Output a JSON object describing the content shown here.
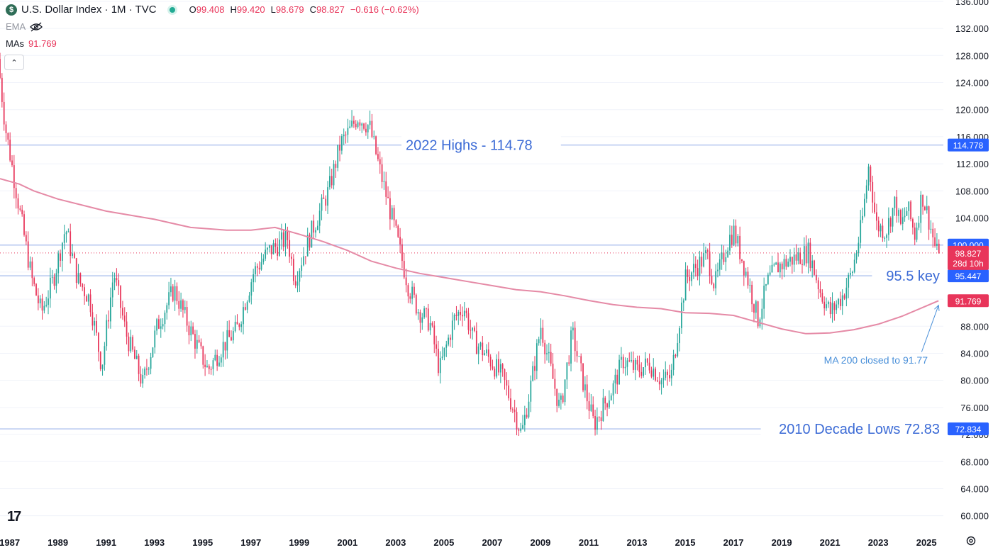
{
  "header": {
    "symbol_icon": "$",
    "title": "U.S. Dollar Index · 1M · TVC",
    "ohlc": {
      "o_label": "O",
      "o_value": "99.408",
      "h_label": "H",
      "h_value": "99.420",
      "l_label": "L",
      "l_value": "98.679",
      "c_label": "C",
      "c_value": "98.827",
      "change": "−0.616 (−0.62%)"
    },
    "ema_label": "EMA",
    "mas_label": "MAs",
    "mas_value": "91.769",
    "logo_text": "17"
  },
  "colors": {
    "up": "#26a69a",
    "down": "#e8355a",
    "ma": "#e58aa6",
    "hline": "#b4c6ef",
    "annotation": "#3c6bd6",
    "axis_tag_blue": "#2962ff",
    "axis_tag_red": "#e8355a"
  },
  "chart_data": {
    "type": "candlestick",
    "title": "U.S. Dollar Index · 1M · TVC",
    "y_axis": {
      "range": [
        58.5,
        136.2
      ],
      "ticks": [
        "60.000",
        "64.000",
        "68.000",
        "72.000",
        "76.000",
        "80.000",
        "84.000",
        "88.000",
        "92.000",
        "96.000",
        "100.000",
        "104.000",
        "108.000",
        "112.000",
        "116.000",
        "120.000",
        "124.000",
        "128.000",
        "132.000",
        "136.000"
      ],
      "tick_values": [
        60,
        64,
        68,
        72,
        76,
        80,
        84,
        88,
        92,
        96,
        100,
        104,
        108,
        112,
        116,
        120,
        124,
        128,
        132,
        136
      ]
    },
    "x_axis": {
      "range": [
        1986.6,
        2025.7
      ],
      "ticks": [
        "1987",
        "1989",
        "1991",
        "1993",
        "1995",
        "1997",
        "1999",
        "2001",
        "2003",
        "2005",
        "2007",
        "2009",
        "2011",
        "2013",
        "2015",
        "2017",
        "2019",
        "2021",
        "2023",
        "2025"
      ],
      "tick_values": [
        1987,
        1989,
        1991,
        1993,
        1995,
        1997,
        1999,
        2001,
        2003,
        2005,
        2007,
        2009,
        2011,
        2013,
        2015,
        2017,
        2019,
        2021,
        2023,
        2025
      ]
    },
    "price_anchors": [
      [
        1986.6,
        127.5
      ],
      [
        1986.9,
        117.5
      ],
      [
        1987.5,
        105.0
      ],
      [
        1988.0,
        95.0
      ],
      [
        1988.4,
        90.0
      ],
      [
        1988.9,
        95.0
      ],
      [
        1989.4,
        102.5
      ],
      [
        1989.9,
        95.0
      ],
      [
        1990.4,
        92.0
      ],
      [
        1990.9,
        82.0
      ],
      [
        1991.4,
        96.0
      ],
      [
        1991.9,
        87.0
      ],
      [
        1992.6,
        79.5
      ],
      [
        1993.2,
        88.0
      ],
      [
        1993.9,
        93.5
      ],
      [
        1994.5,
        88.0
      ],
      [
        1995.3,
        81.5
      ],
      [
        1995.9,
        85.0
      ],
      [
        1996.5,
        87.5
      ],
      [
        1997.2,
        96.0
      ],
      [
        1997.8,
        99.0
      ],
      [
        1998.6,
        101.0
      ],
      [
        1998.9,
        95.0
      ],
      [
        1999.6,
        102.0
      ],
      [
        2000.3,
        108.0
      ],
      [
        2000.8,
        115.0
      ],
      [
        2001.2,
        117.0
      ],
      [
        2001.5,
        119.0
      ],
      [
        2002.0,
        117.5
      ],
      [
        2002.5,
        110.0
      ],
      [
        2003.0,
        103.0
      ],
      [
        2003.6,
        94.0
      ],
      [
        2004.0,
        90.5
      ],
      [
        2004.5,
        88.5
      ],
      [
        2004.9,
        81.5
      ],
      [
        2005.5,
        89.0
      ],
      [
        2005.9,
        91.0
      ],
      [
        2006.3,
        86.0
      ],
      [
        2006.9,
        83.5
      ],
      [
        2007.5,
        80.5
      ],
      [
        2008.0,
        75.5
      ],
      [
        2008.3,
        72.0
      ],
      [
        2008.7,
        79.5
      ],
      [
        2009.1,
        88.0
      ],
      [
        2009.9,
        75.5
      ],
      [
        2010.4,
        87.0
      ],
      [
        2010.9,
        79.0
      ],
      [
        2011.3,
        73.5
      ],
      [
        2012.1,
        79.0
      ],
      [
        2012.5,
        83.0
      ],
      [
        2013.1,
        81.5
      ],
      [
        2013.6,
        82.5
      ],
      [
        2014.1,
        80.0
      ],
      [
        2014.5,
        80.5
      ],
      [
        2015.1,
        95.0
      ],
      [
        2015.6,
        97.0
      ],
      [
        2016.0,
        98.5
      ],
      [
        2016.3,
        94.0
      ],
      [
        2016.9,
        101.0
      ],
      [
        2017.1,
        102.0
      ],
      [
        2017.6,
        96.0
      ],
      [
        2018.1,
        89.0
      ],
      [
        2018.5,
        94.5
      ],
      [
        2018.9,
        96.8
      ],
      [
        2019.6,
        98.0
      ],
      [
        2020.2,
        99.0
      ],
      [
        2020.7,
        93.0
      ],
      [
        2021.1,
        90.0
      ],
      [
        2021.6,
        92.5
      ],
      [
        2022.0,
        96.0
      ],
      [
        2022.4,
        103.0
      ],
      [
        2022.7,
        112.0
      ],
      [
        2023.0,
        103.0
      ],
      [
        2023.4,
        102.0
      ],
      [
        2023.8,
        106.5
      ],
      [
        2024.0,
        102.5
      ],
      [
        2024.3,
        105.5
      ],
      [
        2024.6,
        101.5
      ],
      [
        2024.9,
        107.5
      ],
      [
        2025.2,
        103.5
      ],
      [
        2025.5,
        98.8
      ]
    ],
    "ma_200": [
      [
        1986.6,
        109.8
      ],
      [
        1987.4,
        109.0
      ],
      [
        1988.0,
        108.0
      ],
      [
        1989.0,
        106.8
      ],
      [
        1991.0,
        105.0
      ],
      [
        1993.0,
        103.8
      ],
      [
        1994.5,
        102.6
      ],
      [
        1996.0,
        102.2
      ],
      [
        1997.0,
        102.2
      ],
      [
        1998.0,
        102.6
      ],
      [
        1999.0,
        101.6
      ],
      [
        2000.0,
        100.5
      ],
      [
        2001.0,
        99.2
      ],
      [
        2002.0,
        97.6
      ],
      [
        2003.0,
        96.6
      ],
      [
        2004.0,
        95.8
      ],
      [
        2005.0,
        95.2
      ],
      [
        2006.0,
        94.6
      ],
      [
        2007.0,
        94.0
      ],
      [
        2008.0,
        93.4
      ],
      [
        2009.0,
        93.1
      ],
      [
        2010.0,
        92.5
      ],
      [
        2011.0,
        91.8
      ],
      [
        2012.0,
        91.2
      ],
      [
        2013.0,
        90.8
      ],
      [
        2014.0,
        90.6
      ],
      [
        2015.0,
        90.0
      ],
      [
        2016.0,
        89.9
      ],
      [
        2017.0,
        89.6
      ],
      [
        2018.0,
        88.6
      ],
      [
        2019.0,
        87.6
      ],
      [
        2020.0,
        86.9
      ],
      [
        2021.0,
        87.0
      ],
      [
        2022.0,
        87.5
      ],
      [
        2023.0,
        88.3
      ],
      [
        2024.0,
        89.5
      ],
      [
        2025.0,
        91.0
      ],
      [
        2025.5,
        91.77
      ]
    ],
    "horizontal_levels": [
      {
        "value": 114.778,
        "tag": "114.778",
        "label": "2022 Highs - 114.78",
        "label_position": "left"
      },
      {
        "value": 100.0,
        "tag": "100.000",
        "label": "",
        "label_position": ""
      },
      {
        "value": 95.447,
        "tag": "95.447",
        "label": "95.5 key",
        "label_position": "right"
      },
      {
        "value": 72.834,
        "tag": "72.834",
        "label": "2010 Decade Lows 72.83",
        "label_position": "right"
      }
    ],
    "current_price": {
      "value": 98.827,
      "tag": "98.827",
      "countdown": "28d 10h",
      "color": "red"
    },
    "ma_tag": {
      "value": 91.769,
      "tag": "91.769",
      "color": "red"
    },
    "annotations": [
      {
        "text": "MA 200 closed to 91.77",
        "arrow_from": [
          2024.8,
          84.2
        ],
        "arrow_to": [
          2025.5,
          91.1
        ]
      }
    ],
    "legend": "top-left",
    "grid": "horizontal"
  }
}
